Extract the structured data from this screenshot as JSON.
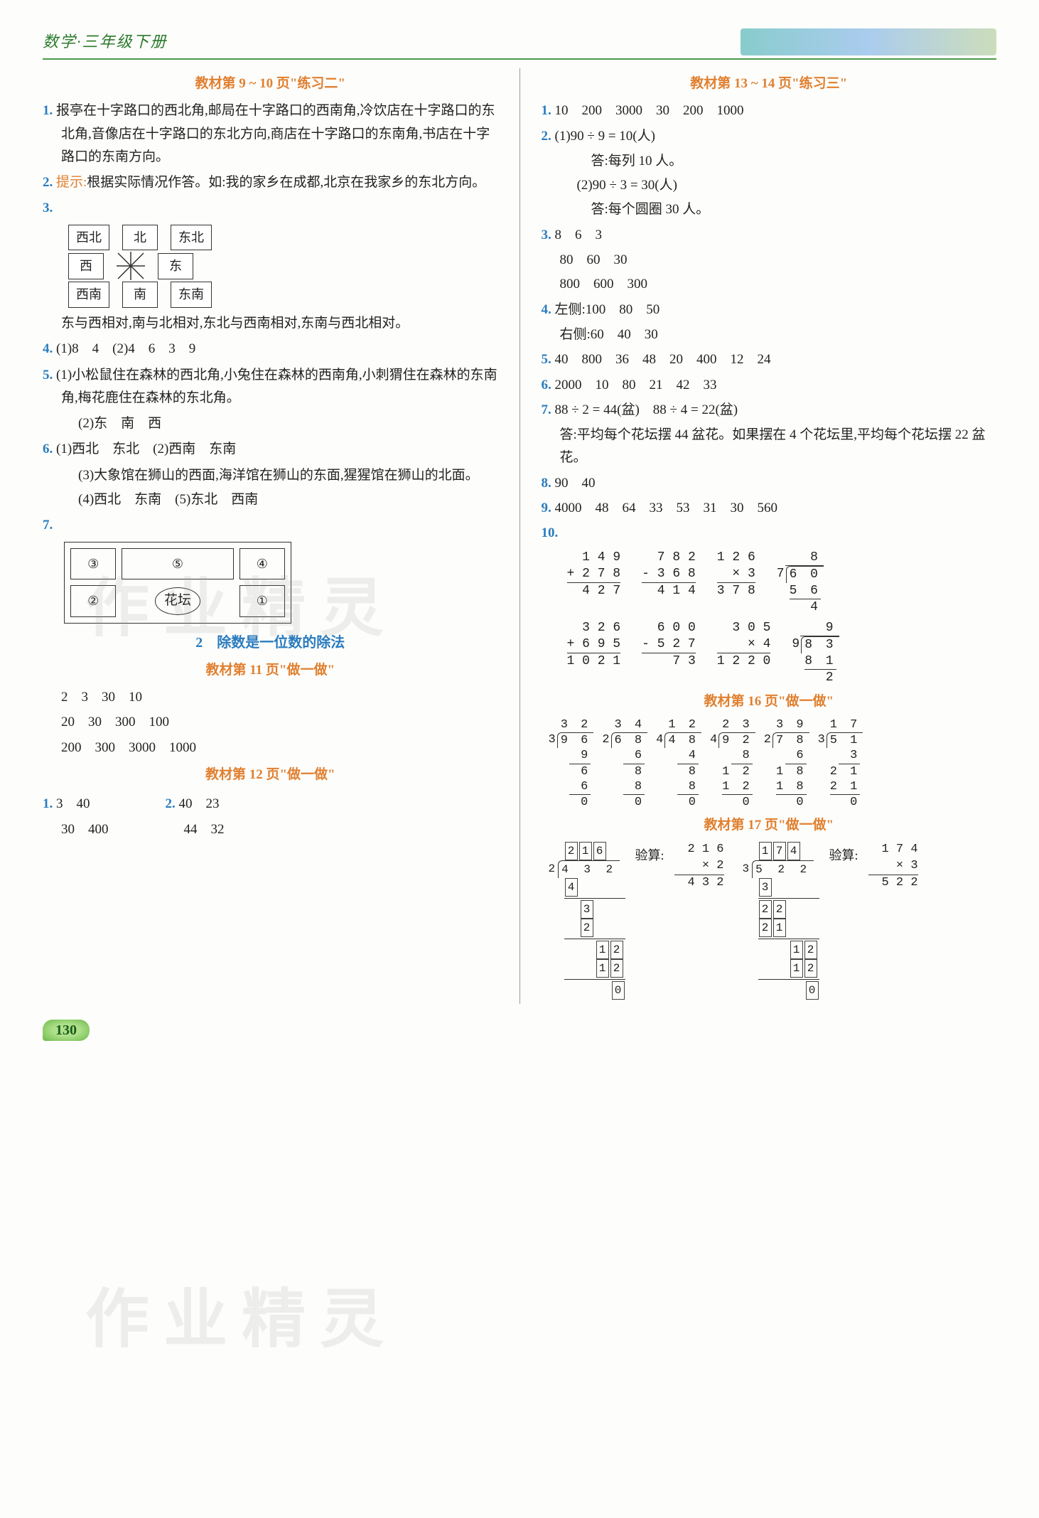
{
  "header": {
    "title": "数学·三年级下册"
  },
  "left": {
    "sec1_title": "教材第 9 ~ 10 页\"练习二\"",
    "q1": "报亭在十字路口的西北角,邮局在十字路口的西南角,冷饮店在十字路口的东北角,音像店在十字路口的东北方向,商店在十字路口的东南角,书店在十字路口的东南方向。",
    "q2_label": "提示:",
    "q2": "根据实际情况作答。如:我的家乡在成都,北京在我家乡的东北方向。",
    "q3_compass": {
      "nw": "西北",
      "n": "北",
      "ne": "东北",
      "w": "西",
      "e": "东",
      "sw": "西南",
      "s": "南",
      "se": "东南"
    },
    "q3_text": "东与西相对,南与北相对,东北与西南相对,东南与西北相对。",
    "q4": "(1)8　4　(2)4　6　3　9",
    "q5_1": "(1)小松鼠住在森林的西北角,小兔住在森林的西南角,小刺猬住在森林的东南角,梅花鹿住在森林的东北角。",
    "q5_2": "(2)东　南　西",
    "q6_1": "(1)西北　东北　(2)西南　东南",
    "q6_3": "(3)大象馆在狮山的西面,海洋馆在狮山的东面,猩猩馆在狮山的北面。",
    "q6_4": "(4)西北　东南　(5)东北　西南",
    "q7_garden": {
      "r1": [
        "③",
        "⑤",
        "④"
      ],
      "r2": [
        "②",
        "花坛",
        "①"
      ]
    },
    "sec2_title": "2　除数是一位数的除法",
    "sec2a_title": "教材第 11 页\"做一做\"",
    "p11_r1": "2　3　30　10",
    "p11_r2": "20　30　300　100",
    "p11_r3": "200　300　3000　1000",
    "sec2b_title": "教材第 12 页\"做一做\"",
    "p12_q1a": "3　40",
    "p12_q1b": "30　400",
    "p12_q2a": "40　23",
    "p12_q2b": "44　32"
  },
  "right": {
    "sec3_title": "教材第 13 ~ 14 页\"练习三\"",
    "q1": "10　200　3000　30　200　1000",
    "q2_1": "(1)90 ÷ 9 = 10(人)",
    "q2_1a": "答:每列 10 人。",
    "q2_2": "(2)90 ÷ 3 = 30(人)",
    "q2_2a": "答:每个圆圈 30 人。",
    "q3_r1": "8　6　3",
    "q3_r2": "80　60　30",
    "q3_r3": "800　600　300",
    "q4_1": "左侧:100　80　50",
    "q4_2": "右侧:60　40　30",
    "q5": "40　800　36　48　20　400　12　24",
    "q6": "2000　10　80　21　42　33",
    "q7_1": "88 ÷ 2 = 44(盆)　88 ÷ 4 = 22(盆)",
    "q7_2": "答:平均每个花坛摆 44 盆花。如果摆在 4 个花坛里,平均每个花坛摆 22 盆花。",
    "q8": "90　40",
    "q9": "4000　48　64　33　53　31　30　560",
    "q10_arith": [
      {
        "a": "1 4 9",
        "b": "+ 2 7 8",
        "r": "4 2 7"
      },
      {
        "a": "7 8 2",
        "b": "- 3 6 8",
        "r": "4 1 4"
      },
      {
        "a": "1 2 6",
        "b": "×     3",
        "r": "3 7 8"
      },
      {
        "a": "3 2 6",
        "b": "+ 6 9 5",
        "r": "1 0 2 1"
      },
      {
        "a": "6 0 0",
        "b": "- 5 2 7",
        "r": "7 3"
      },
      {
        "a": "3 0 5",
        "b": "×     4",
        "r": "1 2 2 0"
      }
    ],
    "q10_div": [
      {
        "q": "8",
        "dv": "7",
        "dd": "6 0",
        "s1": "5 6",
        "s2": "4"
      },
      {
        "q": "9",
        "dv": "9",
        "dd": "8 3",
        "s1": "8 1",
        "s2": "2"
      }
    ],
    "sec4_title": "教材第 16 页\"做一做\"",
    "p16": [
      {
        "q": "3 2",
        "dv": "3",
        "dd": "9 6",
        "steps": [
          "9",
          "6",
          "6",
          "0"
        ]
      },
      {
        "q": "3 4",
        "dv": "2",
        "dd": "6 8",
        "steps": [
          "6",
          "8",
          "8",
          "0"
        ]
      },
      {
        "q": "1 2",
        "dv": "4",
        "dd": "4 8",
        "steps": [
          "4",
          "8",
          "8",
          "0"
        ]
      },
      {
        "q": "2 3",
        "dv": "4",
        "dd": "9 2",
        "steps": [
          "8",
          "1 2",
          "1 2",
          "0"
        ]
      },
      {
        "q": "3 9",
        "dv": "2",
        "dd": "7 8",
        "steps": [
          "6",
          "1 8",
          "1 8",
          "0"
        ]
      },
      {
        "q": "1 7",
        "dv": "3",
        "dd": "5 1",
        "steps": [
          "3",
          "2 1",
          "2 1",
          "0"
        ]
      }
    ],
    "sec5_title": "教材第 17 页\"做一做\"",
    "p17": [
      {
        "q": [
          "2",
          "1",
          "6"
        ],
        "dv": "2",
        "dd": "4 3 2",
        "steps": [
          [
            "4"
          ],
          [
            " ",
            "3"
          ],
          [
            " ",
            "2"
          ],
          [
            " ",
            " ",
            "1",
            "2"
          ],
          [
            " ",
            " ",
            "1",
            "2"
          ],
          [
            " ",
            " ",
            " ",
            "0"
          ]
        ],
        "check_label": "验算:",
        "mult": {
          "a": "2 1 6",
          "b": "×     2",
          "r": "4 3 2"
        }
      },
      {
        "q": [
          "1",
          "7",
          "4"
        ],
        "dv": "3",
        "dd": "5 2 2",
        "steps": [
          [
            "3"
          ],
          [
            "2",
            "2"
          ],
          [
            "2",
            "1"
          ],
          [
            " ",
            " ",
            "1",
            "2"
          ],
          [
            " ",
            " ",
            "1",
            "2"
          ],
          [
            " ",
            " ",
            " ",
            "0"
          ]
        ],
        "check_label": "验算:",
        "mult": {
          "a": "1 7 4",
          "b": "×     3",
          "r": "5 2 2"
        }
      }
    ]
  },
  "page_number": "130",
  "watermark": "作业精灵"
}
